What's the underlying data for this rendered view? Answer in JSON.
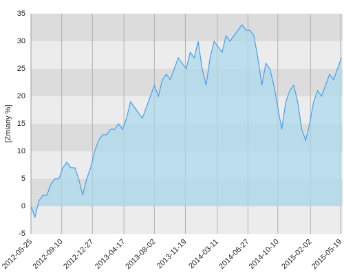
{
  "chart_data": {
    "type": "area",
    "y_label": "[Zmiany %]",
    "color": "#4a9fe6",
    "fill": "#a8d8ee",
    "x": [
      "2012-05-25",
      "2012-06-08",
      "2012-06-22",
      "2012-07-06",
      "2012-07-20",
      "2012-08-03",
      "2012-08-17",
      "2012-08-31",
      "2012-09-14",
      "2012-09-28",
      "2012-10-12",
      "2012-10-26",
      "2012-11-09",
      "2012-11-23",
      "2012-12-07",
      "2012-12-21",
      "2013-01-04",
      "2013-01-18",
      "2013-02-01",
      "2013-02-15",
      "2013-03-01",
      "2013-03-15",
      "2013-03-29",
      "2013-04-12",
      "2013-04-26",
      "2013-05-10",
      "2013-05-24",
      "2013-06-07",
      "2013-06-21",
      "2013-07-05",
      "2013-07-19",
      "2013-08-02",
      "2013-08-16",
      "2013-08-30",
      "2013-09-13",
      "2013-09-27",
      "2013-10-11",
      "2013-10-25",
      "2013-11-08",
      "2013-11-22",
      "2013-12-06",
      "2013-12-20",
      "2014-01-03",
      "2014-01-17",
      "2014-01-31",
      "2014-02-14",
      "2014-02-28",
      "2014-03-14",
      "2014-03-28",
      "2014-04-11",
      "2014-04-25",
      "2014-05-09",
      "2014-05-23",
      "2014-06-06",
      "2014-06-20",
      "2014-07-04",
      "2014-07-18",
      "2014-08-01",
      "2014-08-15",
      "2014-08-29",
      "2014-09-12",
      "2014-09-26",
      "2014-10-10",
      "2014-10-24",
      "2014-11-07",
      "2014-11-21",
      "2014-12-05",
      "2014-12-19",
      "2015-01-02",
      "2015-01-16",
      "2015-01-30",
      "2015-02-13",
      "2015-02-27",
      "2015-03-13",
      "2015-03-27",
      "2015-04-10",
      "2015-04-24",
      "2015-05-08",
      "2015-05-22"
    ],
    "values": [
      0,
      -2,
      1,
      2,
      2,
      4,
      5,
      5,
      7,
      8,
      7,
      7,
      5,
      2,
      5,
      7,
      10,
      12,
      13,
      13,
      14,
      14,
      15,
      14,
      16,
      19,
      18,
      17,
      16,
      18,
      20,
      22,
      20,
      23,
      24,
      23,
      25,
      27,
      26,
      25,
      28,
      27,
      30,
      25,
      22,
      27,
      30,
      29,
      28,
      31,
      30,
      31,
      32,
      33,
      32,
      32,
      31,
      27,
      22,
      26,
      25,
      22,
      18,
      14,
      19,
      21,
      22,
      19,
      14,
      12,
      15,
      19,
      21,
      20,
      22,
      24,
      23,
      25,
      27
    ],
    "xlim": [
      "2012-05-25",
      "2015-05-26"
    ],
    "xticks": [
      "2012-05-25",
      "2012-09-10",
      "2012-12-27",
      "2013-04-17",
      "2013-08-02",
      "2013-11-19",
      "2014-03-11",
      "2014-06-27",
      "2014-10-10",
      "2015-02-02",
      "2015-05-19"
    ],
    "ylim": [
      -5,
      35
    ],
    "yticks": [
      -5,
      0,
      5,
      10,
      15,
      20,
      25,
      30,
      35
    ],
    "grid": true
  }
}
